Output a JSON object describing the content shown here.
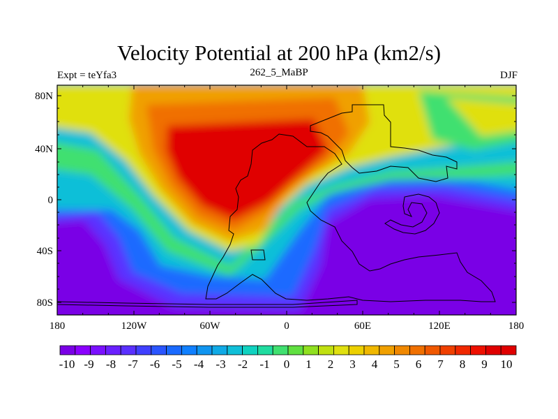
{
  "title": "Velocity Potential at 200 hPa (km2/s)",
  "experiment_label": "Expt = teYfa3",
  "run_label": "262_5_MaBP",
  "season_label": "DJF",
  "lat_ticks": [
    "80N",
    "40N",
    "0",
    "40S",
    "80S"
  ],
  "lon_ticks": [
    "180",
    "120W",
    "60W",
    "0",
    "60E",
    "120E",
    "180"
  ],
  "colorbar_labels": [
    "-10",
    "-9",
    "-8",
    "-7",
    "-6",
    "-5",
    "-4",
    "-3",
    "-2",
    "-1",
    "0",
    "1",
    "2",
    "3",
    "4",
    "5",
    "6",
    "7",
    "8",
    "9",
    "10"
  ],
  "colorbar_colors": [
    "#7a00e6",
    "#8b00ff",
    "#7a10ff",
    "#6a20ff",
    "#5a30ff",
    "#4040ff",
    "#2a55ff",
    "#1a6aff",
    "#1080ff",
    "#1095f0",
    "#10aae6",
    "#10bfd8",
    "#10d2c0",
    "#20dca0",
    "#40e070",
    "#60e040",
    "#90e020",
    "#c0e010",
    "#e0e010",
    "#ecd000",
    "#f0b800",
    "#f0a000",
    "#f08800",
    "#f07000",
    "#f05800",
    "#f04000",
    "#f02800",
    "#ee1000",
    "#e00000",
    "#e00000"
  ],
  "field_colors": {
    "neg_core": "#7a00e6",
    "neg_mid": "#5a30ff",
    "neg_edge": "#1a6aff",
    "cyan": "#10bfd8",
    "green": "#40e070",
    "yellow": "#e0e010",
    "orange": "#f0a000",
    "orange_dark": "#f07000",
    "red": "#e00000"
  }
}
